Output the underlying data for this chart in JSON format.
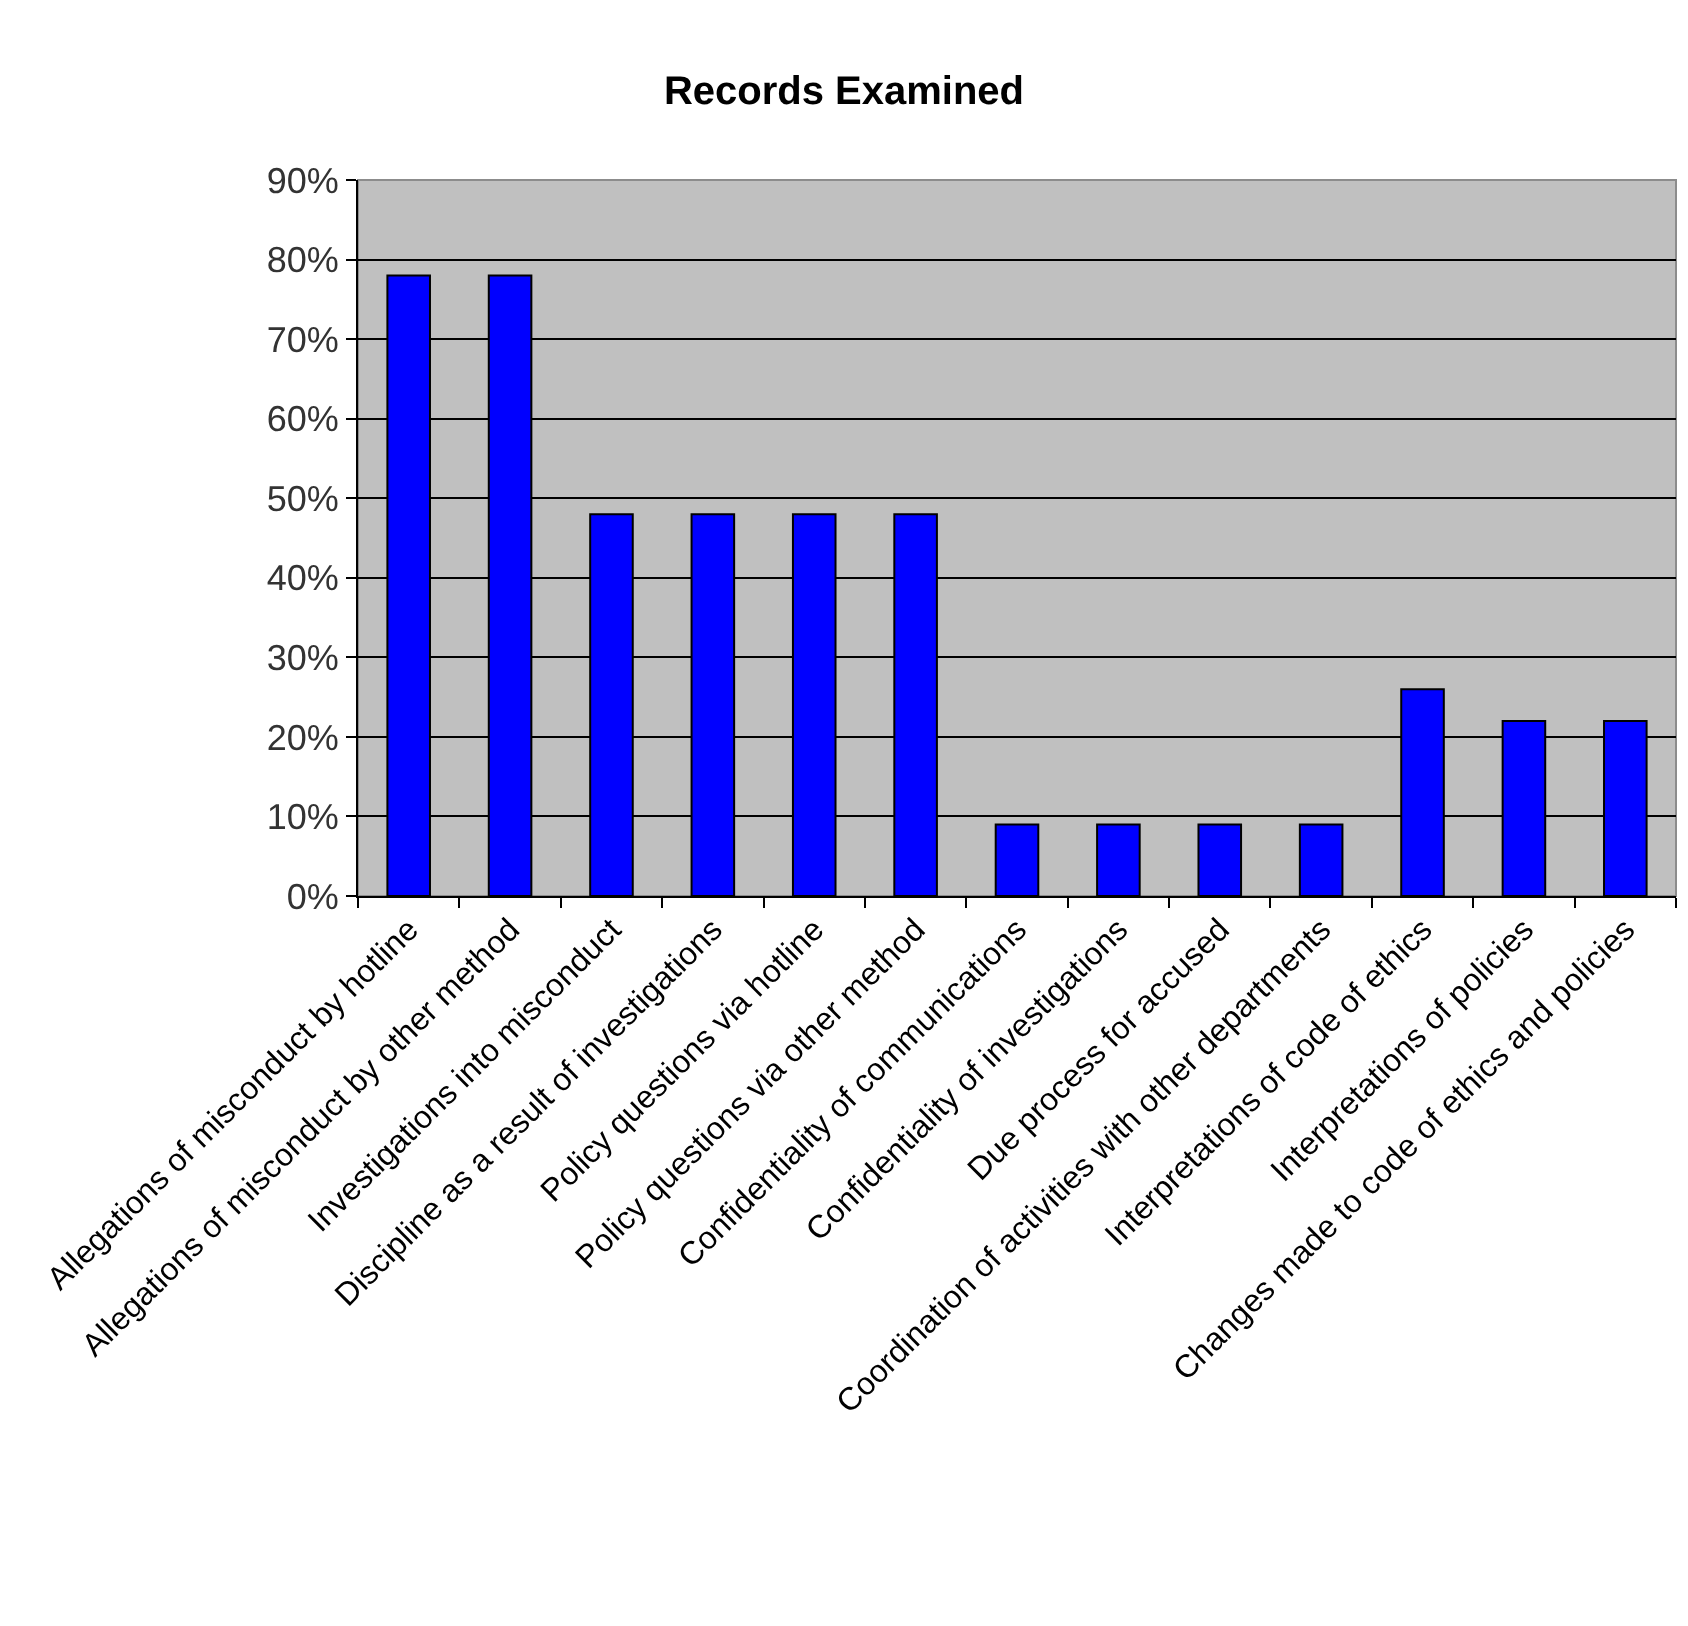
{
  "chart_data": {
    "type": "bar",
    "title": "Records Examined",
    "categories": [
      "Allegations of misconduct by hotline",
      "Allegations of misconduct by other method",
      "Investigations into misconduct",
      "Discipline as a result of investigations",
      "Policy questions via hotline",
      "Policy questions via other method",
      "Confidentiality of communications",
      "Confidentiality of investigations",
      "Due process for accused",
      "Coordination of activities with other departments",
      "Interpretations of code of ethics",
      "Interpretations of policies",
      "Changes made to code of ethics and policies"
    ],
    "values": [
      78,
      78,
      48,
      48,
      48,
      48,
      9,
      9,
      9,
      9,
      26,
      22,
      22
    ],
    "color": "#0000ff",
    "ylim": [
      0,
      90
    ],
    "yticks": [
      {
        "value": 0,
        "label": "0%"
      },
      {
        "value": 10,
        "label": "10%"
      },
      {
        "value": 20,
        "label": "20%"
      },
      {
        "value": 30,
        "label": "30%"
      },
      {
        "value": 40,
        "label": "40%"
      },
      {
        "value": 50,
        "label": "50%"
      },
      {
        "value": 60,
        "label": "60%"
      },
      {
        "value": 70,
        "label": "70%"
      },
      {
        "value": 80,
        "label": "80%"
      },
      {
        "value": 90,
        "label": "90%"
      }
    ],
    "grid": "y",
    "legend": false
  }
}
